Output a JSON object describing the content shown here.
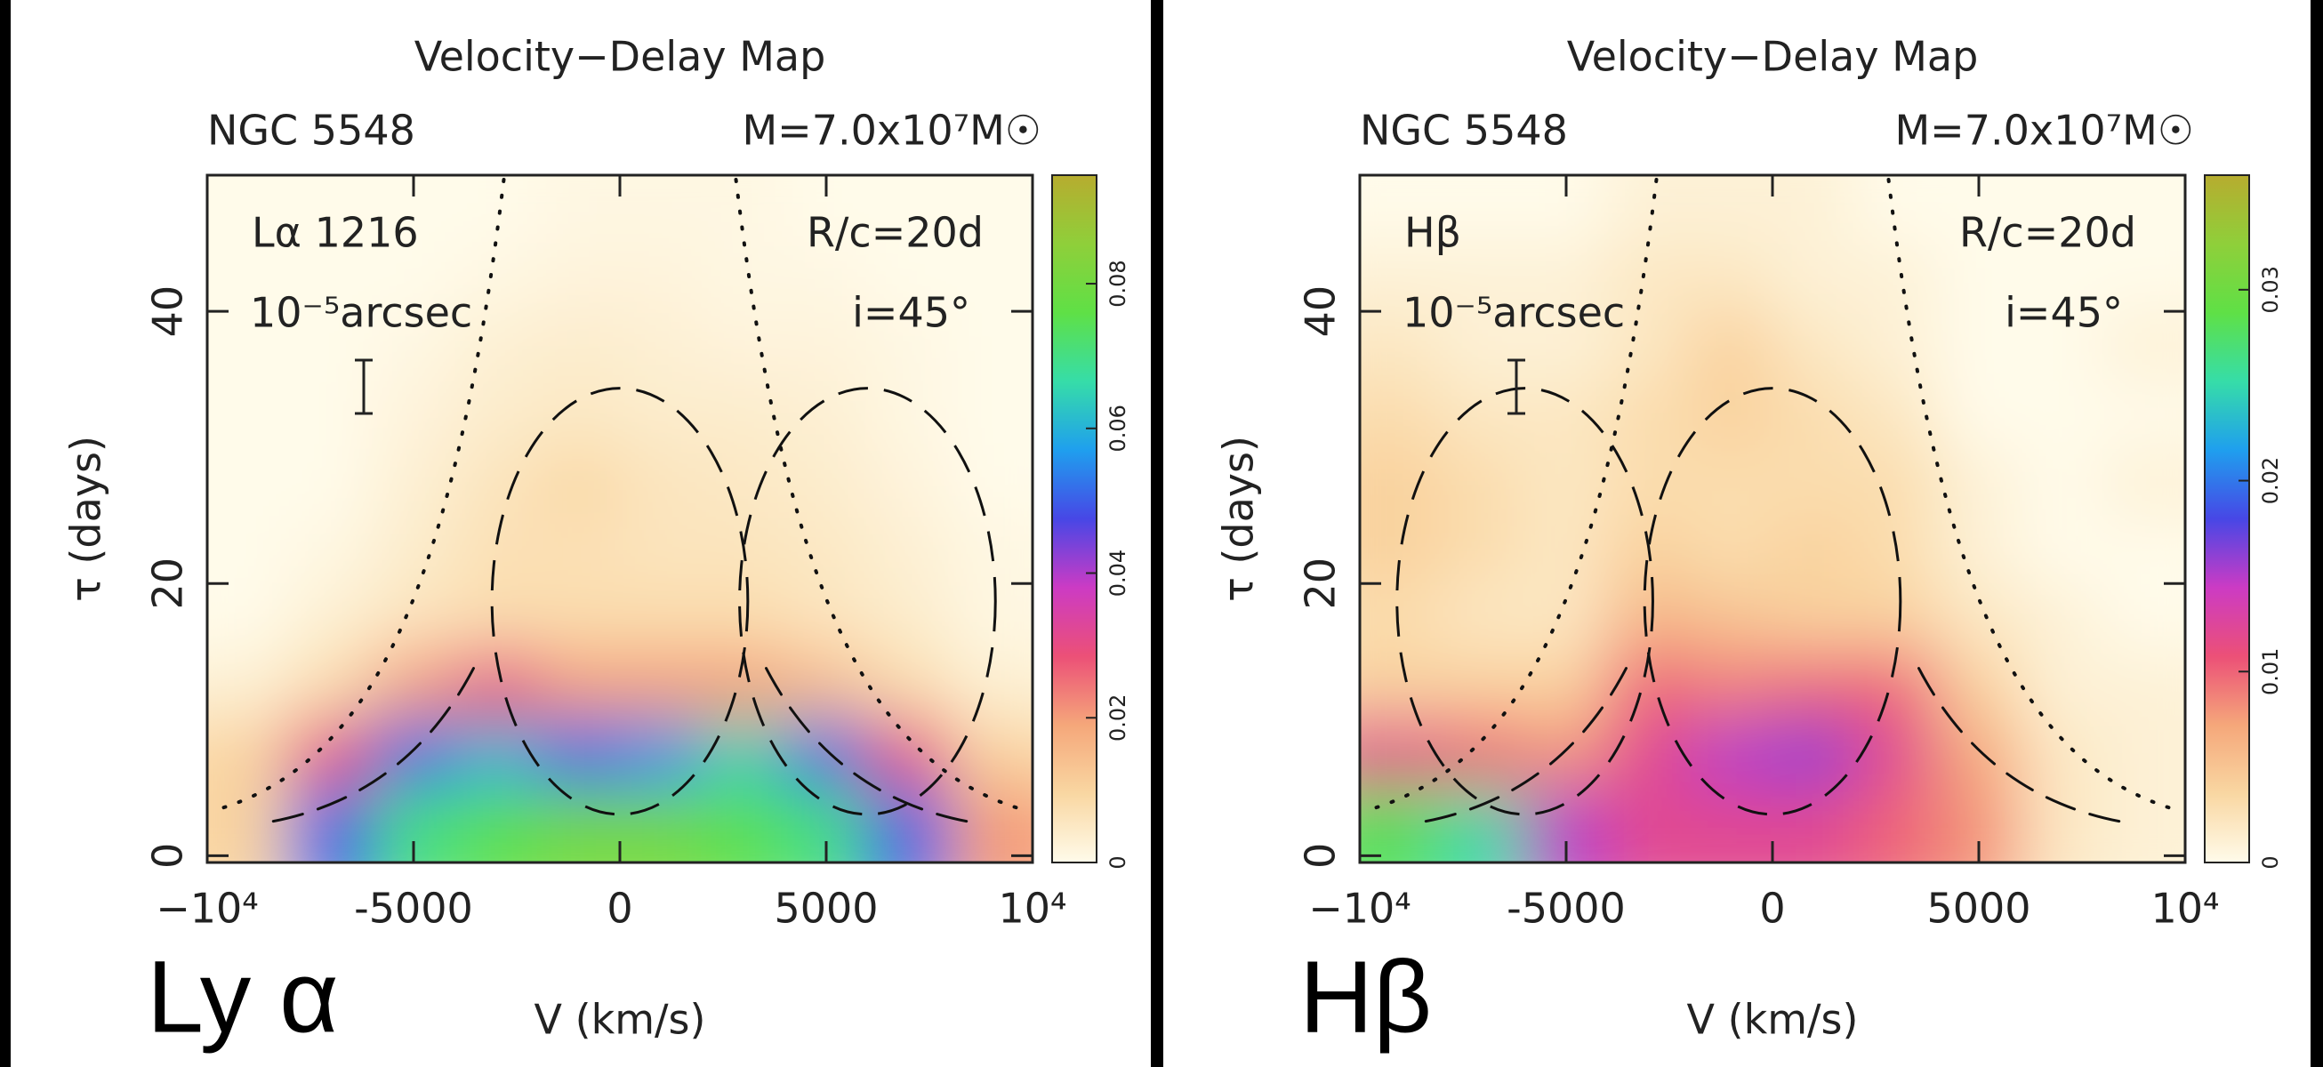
{
  "chart_data": [
    {
      "type": "heatmap",
      "title": "Velocity−Delay Map",
      "object": "NGC 5548",
      "mass": "M=7.0x10⁷M☉",
      "annotations": [
        "Lα 1216",
        "10⁻⁵arcsec",
        "R/c=20d",
        "i=45°"
      ],
      "panel_label": "Ly α",
      "xlabel": "V (km/s)",
      "ylabel": "τ (days)",
      "xlim": [
        -10000,
        10000
      ],
      "xticks": [
        {
          "value": -10000,
          "label": "−10⁴"
        },
        -5000,
        0,
        5000,
        {
          "value": 10000,
          "label": "10⁴"
        }
      ],
      "ylim": [
        -0.5,
        50
      ],
      "yticks": [
        0,
        20,
        40
      ],
      "zlim": [
        0,
        0.095
      ],
      "zticks": [
        0,
        0.02,
        0.04,
        0.06,
        0.08
      ],
      "colorscale": [
        "#fffbea",
        "#f9d7a2",
        "#f5a77a",
        "#ec5077",
        "#cc3bc4",
        "#4747e6",
        "#1f9fee",
        "#36dda8",
        "#5fe046",
        "#8fcf3a",
        "#b7ac2f"
      ],
      "x": [
        -9000,
        -7000,
        -5000,
        -3000,
        -1000,
        1000,
        3000,
        5000,
        7000,
        9000
      ],
      "y": [
        2.5,
        7.5,
        12.5,
        17.5,
        22.5,
        27.5,
        32.5,
        37.5,
        42.5,
        47.5
      ],
      "values": [
        [
          0.01,
          0.05,
          0.07,
          0.075,
          0.08,
          0.08,
          0.075,
          0.07,
          0.05,
          0.02
        ],
        [
          0.01,
          0.03,
          0.05,
          0.06,
          0.05,
          0.055,
          0.065,
          0.05,
          0.03,
          0.01
        ],
        [
          0.003,
          0.008,
          0.02,
          0.03,
          0.02,
          0.02,
          0.02,
          0.015,
          0.008,
          0.003
        ],
        [
          0,
          0.003,
          0.006,
          0.008,
          0.008,
          0.008,
          0.008,
          0.006,
          0.004,
          0.001
        ],
        [
          0,
          0.001,
          0.004,
          0.007,
          0.007,
          0.006,
          0.006,
          0.005,
          0.003,
          0.001
        ],
        [
          0,
          0,
          0.003,
          0.006,
          0.009,
          0.006,
          0.005,
          0.004,
          0.002,
          0
        ],
        [
          0,
          0,
          0.002,
          0.004,
          0.005,
          0.004,
          0.004,
          0.003,
          0.001,
          0
        ],
        [
          0,
          0,
          0.001,
          0.003,
          0.004,
          0.003,
          0.002,
          0.002,
          0.001,
          0
        ],
        [
          0,
          0,
          0,
          0.001,
          0.002,
          0.002,
          0.001,
          0.001,
          0,
          0
        ],
        [
          0,
          0,
          0,
          0,
          0.001,
          0.001,
          0.001,
          0,
          0,
          0
        ]
      ]
    },
    {
      "type": "heatmap",
      "title": "Velocity−Delay Map",
      "object": "NGC 5548",
      "mass": "M=7.0x10⁷M☉",
      "annotations": [
        "Hβ",
        "10⁻⁵arcsec",
        "R/c=20d",
        "i=45°"
      ],
      "panel_label": "Hβ",
      "xlabel": "V (km/s)",
      "ylabel": "τ (days)",
      "xlim": [
        -10000,
        10000
      ],
      "xticks": [
        {
          "value": -10000,
          "label": "−10⁴"
        },
        -5000,
        0,
        5000,
        {
          "value": 10000,
          "label": "10⁴"
        }
      ],
      "ylim": [
        -0.5,
        50
      ],
      "yticks": [
        0,
        20,
        40
      ],
      "zlim": [
        0,
        0.036
      ],
      "zticks": [
        0,
        0.01,
        0.02,
        0.03
      ],
      "colorscale": [
        "#fffbea",
        "#f9d7a2",
        "#f5a77a",
        "#ec5077",
        "#cc3bc4",
        "#4747e6",
        "#1f9fee",
        "#36dda8",
        "#5fe046",
        "#8fcf3a",
        "#b7ac2f"
      ],
      "x": [
        -9000,
        -7000,
        -5000,
        -3000,
        -1000,
        1000,
        3000,
        5000,
        7000,
        9000
      ],
      "y": [
        2.5,
        7.5,
        12.5,
        17.5,
        22.5,
        27.5,
        32.5,
        37.5,
        42.5,
        47.5
      ],
      "values": [
        [
          0.028,
          0.025,
          0.015,
          0.012,
          0.012,
          0.012,
          0.01,
          0.008,
          0.002,
          0.001
        ],
        [
          0.012,
          0.01,
          0.008,
          0.012,
          0.015,
          0.016,
          0.012,
          0.007,
          0.002,
          0.001
        ],
        [
          0.004,
          0.004,
          0.004,
          0.01,
          0.009,
          0.01,
          0.01,
          0.004,
          0.001,
          0.001
        ],
        [
          0.003,
          0.002,
          0.002,
          0.006,
          0.005,
          0.004,
          0.004,
          0.002,
          0.001,
          0
        ],
        [
          0.004,
          0.003,
          0.002,
          0.004,
          0.003,
          0.004,
          0.003,
          0.001,
          0,
          0
        ],
        [
          0.004,
          0.003,
          0.002,
          0.003,
          0.003,
          0.003,
          0.003,
          0.001,
          0,
          0.001
        ],
        [
          0.003,
          0.002,
          0.002,
          0.003,
          0.004,
          0.003,
          0.002,
          0,
          0,
          0
        ],
        [
          0.002,
          0.001,
          0.001,
          0.002,
          0.004,
          0.002,
          0.001,
          0,
          0,
          0.001
        ],
        [
          0.001,
          0.001,
          0.001,
          0.002,
          0.002,
          0.001,
          0.001,
          0,
          0,
          0
        ],
        [
          0,
          0,
          0,
          0.001,
          0.001,
          0.001,
          0,
          0,
          0,
          0
        ]
      ]
    }
  ]
}
